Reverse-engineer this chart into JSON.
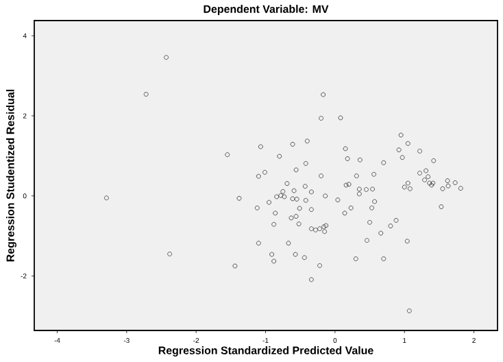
{
  "chart_data": {
    "type": "scatter",
    "title": "Dependent Variable: MV",
    "xlabel": "Regression Standardized Predicted Value",
    "ylabel": "Regression Studentized Residual",
    "xlim": [
      -4.33,
      2.34
    ],
    "ylim": [
      -3.36,
      4.38
    ],
    "xticks": [
      -4,
      -3,
      -2,
      -1,
      0,
      1,
      2
    ],
    "yticks": [
      -2,
      0,
      2,
      4
    ],
    "marker": "circle",
    "series": [
      {
        "color": "#333333",
        "x": [
          -2.43,
          -2.72,
          -3.29,
          -2.38,
          -1.55,
          -1.38,
          -1.44,
          -1.07,
          -1.1,
          -1.01,
          -1.12,
          -1.1,
          -0.8,
          -0.95,
          -0.86,
          -0.88,
          -0.91,
          -0.88,
          -0.84,
          -0.78,
          -0.75,
          -0.73,
          -0.69,
          -0.61,
          -0.56,
          -0.59,
          -0.61,
          -0.55,
          -0.63,
          -0.56,
          -0.51,
          -0.52,
          -0.57,
          -0.67,
          -0.4,
          -0.42,
          -0.43,
          -0.42,
          -0.34,
          -0.34,
          -0.34,
          -0.28,
          -0.44,
          -0.34,
          -0.2,
          -0.17,
          -0.2,
          -0.14,
          -0.22,
          -0.16,
          -0.13,
          -0.15,
          -0.22,
          0.04,
          0.08,
          0.15,
          0.18,
          0.16,
          0.2,
          0.14,
          0.23,
          0.31,
          0.36,
          0.35,
          0.35,
          0.3,
          0.45,
          0.46,
          0.54,
          0.56,
          0.57,
          0.53,
          0.5,
          0.66,
          0.7,
          0.7,
          0.8,
          0.88,
          0.95,
          0.92,
          0.97,
          1.05,
          1.0,
          1.05,
          1.08,
          1.04,
          1.07,
          1.22,
          1.22,
          1.31,
          1.34,
          1.29,
          1.36,
          1.39,
          1.41,
          1.42,
          1.53,
          1.55,
          1.62,
          1.63,
          1.73,
          1.81
        ],
        "values": [
          3.46,
          2.54,
          -0.05,
          -1.45,
          1.03,
          -0.06,
          -1.75,
          1.23,
          0.49,
          0.59,
          -0.3,
          -1.18,
          0.99,
          -0.16,
          -0.43,
          -0.71,
          -1.46,
          -1.63,
          -0.02,
          0.01,
          0.11,
          -0.02,
          0.31,
          1.29,
          0.65,
          0.13,
          -0.07,
          -0.08,
          -0.55,
          -0.51,
          -0.31,
          -0.7,
          -1.46,
          -1.18,
          1.37,
          0.81,
          0.24,
          -0.11,
          0.1,
          -0.34,
          -0.82,
          -0.85,
          -1.54,
          -2.09,
          1.94,
          2.53,
          0.5,
          0.0,
          -0.82,
          -0.77,
          -0.74,
          -0.89,
          -1.74,
          -0.1,
          1.95,
          1.18,
          0.93,
          0.27,
          0.29,
          -0.43,
          -0.3,
          0.5,
          0.9,
          0.17,
          0.05,
          -1.57,
          0.16,
          -1.11,
          0.17,
          0.54,
          -0.14,
          -0.3,
          -0.66,
          -0.93,
          0.83,
          -1.57,
          -0.75,
          -0.61,
          1.52,
          1.15,
          0.96,
          1.31,
          0.22,
          0.32,
          0.18,
          -1.13,
          -2.87,
          1.12,
          0.57,
          0.63,
          0.48,
          0.4,
          0.32,
          0.27,
          0.32,
          0.88,
          -0.27,
          0.18,
          0.38,
          0.25,
          0.33,
          0.19
        ]
      }
    ]
  }
}
